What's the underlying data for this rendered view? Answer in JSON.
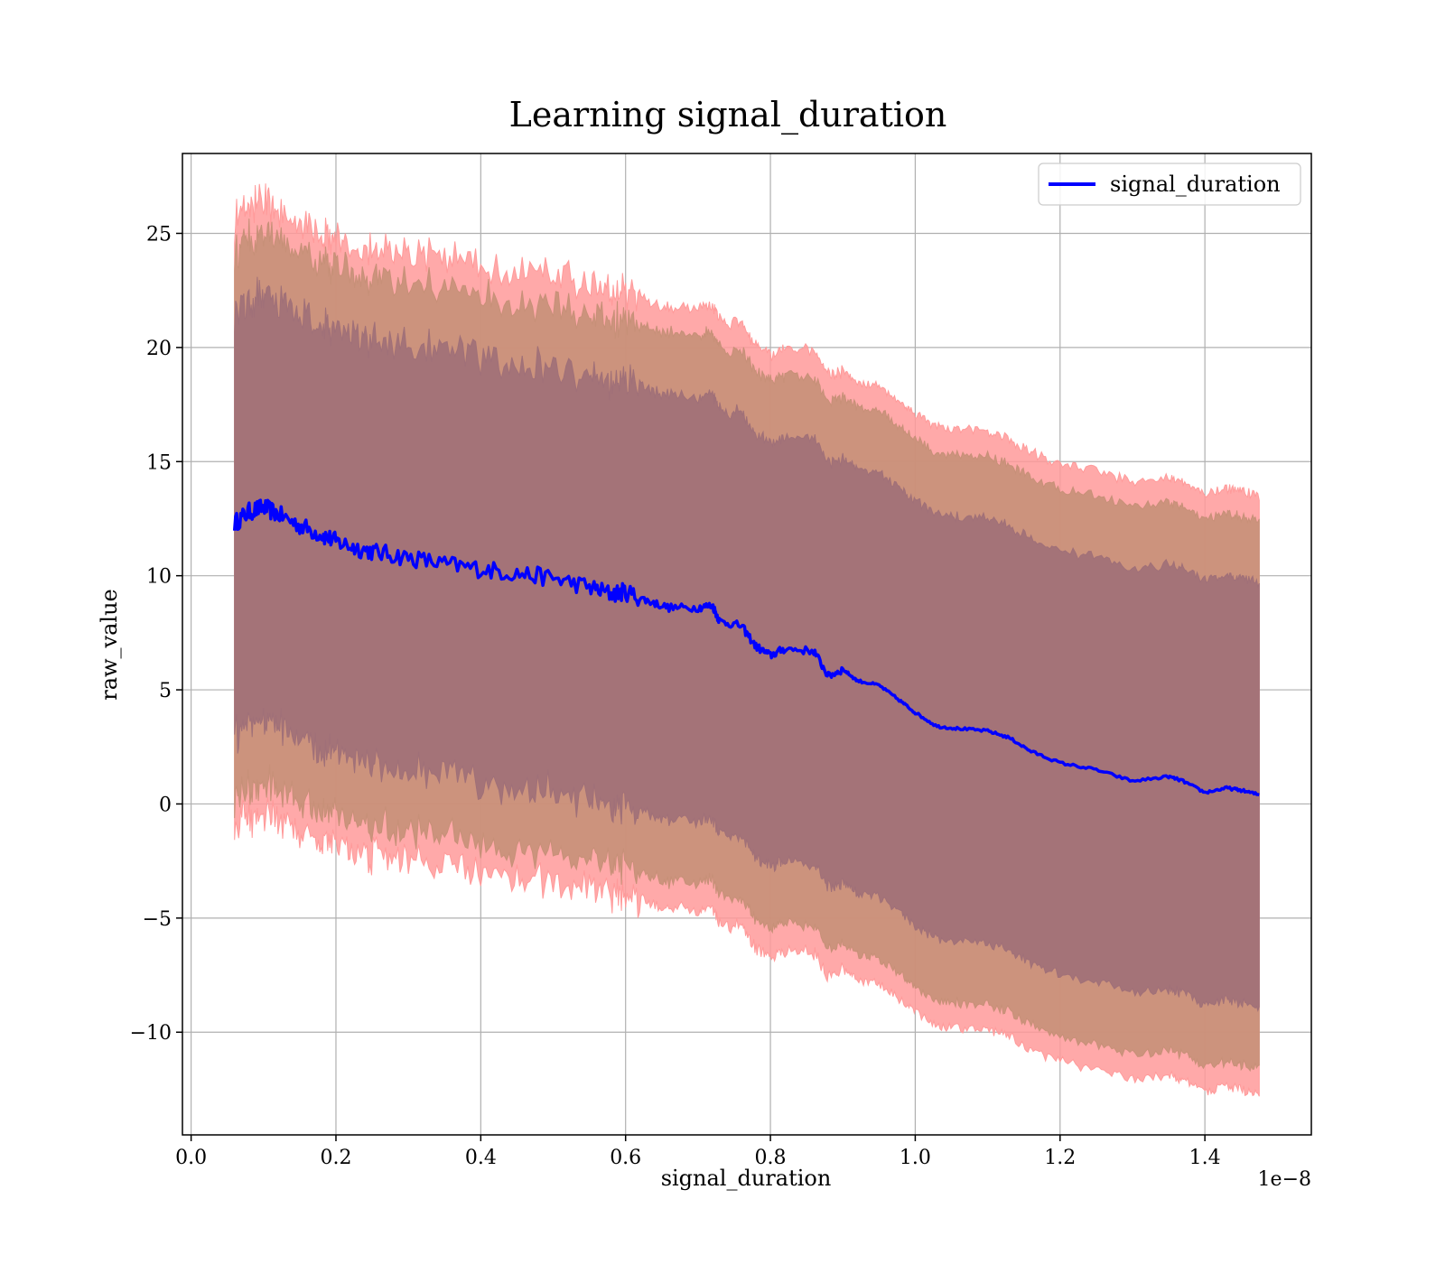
{
  "chart_data": {
    "type": "line",
    "title": "Learning signal_duration",
    "xlabel": "signal_duration",
    "ylabel": "raw_value",
    "x_offset_label": "1e−8",
    "xlim": [
      -0.012,
      1.547
    ],
    "ylim": [
      -14.5,
      28.5
    ],
    "xticks": [
      0.0,
      0.2,
      0.4,
      0.6,
      0.8,
      1.0,
      1.2,
      1.4
    ],
    "xtick_labels": [
      "0.0",
      "0.2",
      "0.4",
      "0.6",
      "0.8",
      "1.0",
      "1.2",
      "1.4"
    ],
    "yticks": [
      -10,
      -5,
      0,
      5,
      10,
      15,
      20,
      25
    ],
    "ytick_labels": [
      "−10",
      "−5",
      "0",
      "5",
      "10",
      "15",
      "20",
      "25"
    ],
    "grid": true,
    "legend": {
      "position": "top-right",
      "entries": [
        "signal_duration"
      ]
    },
    "colors": {
      "line": "#0000ff",
      "band_outer": "#ff9a9a",
      "band_middle": "#c79078",
      "band_inner": "#a07078"
    },
    "series": [
      {
        "name": "signal_duration",
        "x": [
          0.06,
          0.08,
          0.1,
          0.12,
          0.15,
          0.18,
          0.2,
          0.23,
          0.26,
          0.3,
          0.35,
          0.4,
          0.45,
          0.5,
          0.55,
          0.58,
          0.6,
          0.63,
          0.66,
          0.7,
          0.72,
          0.73,
          0.76,
          0.78,
          0.8,
          0.82,
          0.86,
          0.88,
          0.9,
          0.92,
          0.95,
          0.98,
          1.0,
          1.03,
          1.06,
          1.1,
          1.13,
          1.16,
          1.2,
          1.25,
          1.3,
          1.35,
          1.37,
          1.4,
          1.43,
          1.45,
          1.475
        ],
        "y": [
          12.3,
          12.8,
          13.0,
          12.7,
          12.2,
          11.8,
          11.5,
          11.2,
          11.0,
          10.8,
          10.5,
          10.3,
          10.1,
          9.9,
          9.5,
          9.2,
          9.3,
          8.9,
          8.6,
          8.6,
          8.7,
          8.0,
          7.8,
          6.9,
          6.5,
          6.8,
          6.7,
          5.6,
          5.9,
          5.4,
          5.2,
          4.5,
          4.0,
          3.4,
          3.3,
          3.2,
          2.9,
          2.3,
          1.8,
          1.5,
          1.0,
          1.2,
          1.0,
          0.5,
          0.7,
          0.6,
          0.4
        ]
      }
    ],
    "bands": [
      {
        "level": "outer",
        "half_width": [
          13.2,
          13.4,
          13.4,
          13.4,
          13.3,
          13.3,
          13.3,
          13.3,
          13.3,
          13.3,
          13.3,
          13.3,
          13.3,
          13.3,
          13.2,
          13.2,
          13.2,
          13.2,
          13.2,
          13.2,
          13.2,
          13.2,
          13.2,
          13.2,
          13.2,
          13.2,
          13.2,
          13.2,
          13.1,
          13.1,
          13.1,
          13.1,
          13.1,
          13.1,
          13.1,
          13.1,
          13.1,
          13.1,
          13.1,
          13.1,
          13.1,
          13.1,
          13.1,
          13.1,
          13.1,
          13.1,
          13.1
        ]
      },
      {
        "level": "middle",
        "half_width": [
          12.0,
          12.0,
          12.0,
          12.0,
          12.0,
          12.0,
          12.0,
          12.0,
          12.0,
          12.0,
          12.0,
          12.0,
          12.0,
          12.0,
          12.0,
          12.0,
          12.0,
          12.0,
          12.0,
          12.0,
          12.0,
          12.0,
          12.0,
          12.0,
          12.0,
          12.0,
          12.0,
          12.0,
          12.0,
          12.0,
          12.0,
          12.0,
          12.0,
          12.0,
          12.0,
          12.0,
          12.0,
          12.0,
          12.0,
          12.0,
          12.0,
          12.0,
          12.0,
          12.0,
          12.0,
          12.0,
          12.0
        ]
      },
      {
        "level": "inner",
        "half_width": [
          9.3,
          9.3,
          9.3,
          9.3,
          9.3,
          9.3,
          9.3,
          9.3,
          9.3,
          9.3,
          9.3,
          9.3,
          9.3,
          9.3,
          9.3,
          9.3,
          9.3,
          9.3,
          9.3,
          9.3,
          9.3,
          9.3,
          9.3,
          9.3,
          9.3,
          9.3,
          9.3,
          9.3,
          9.3,
          9.3,
          9.3,
          9.3,
          9.3,
          9.3,
          9.3,
          9.3,
          9.3,
          9.3,
          9.3,
          9.3,
          9.3,
          9.3,
          9.3,
          9.3,
          9.3,
          9.3,
          9.3
        ]
      }
    ]
  }
}
